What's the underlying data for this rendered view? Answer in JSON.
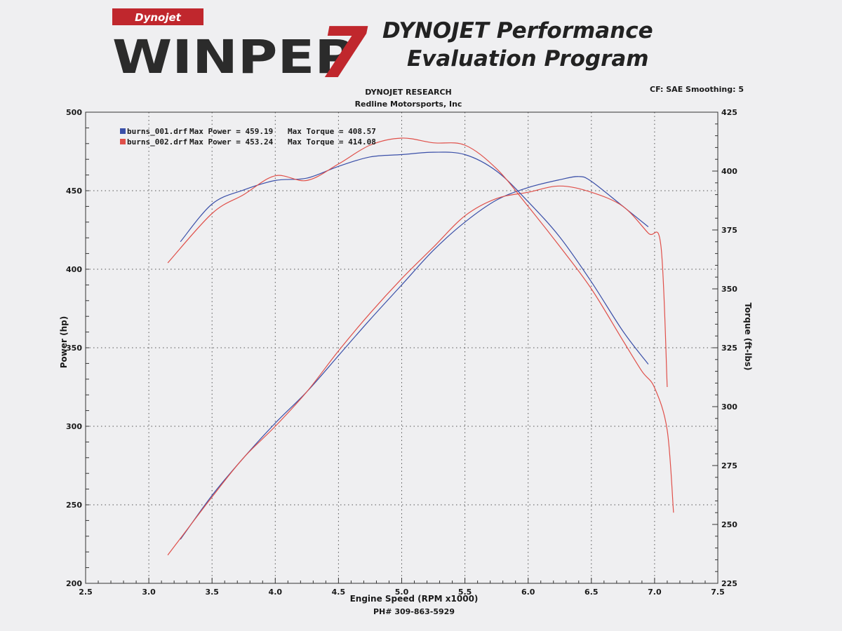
{
  "header": {
    "logo_brand": "Dynojet",
    "logo_main": "WINPEP",
    "logo_version": "7",
    "program_title_line1": "DYNOJET Performance",
    "program_title_line2": "Evaluation Program",
    "company": "DYNOJET RESEARCH",
    "shop": "Redline Motorsports, Inc",
    "settings": "CF: SAE  Smoothing: 5"
  },
  "footer": {
    "phone": "PH# 309-863-5929"
  },
  "legend": [
    {
      "file": "burns_001.drf",
      "power_label": "Max Power = 459.19",
      "torque_label": "Max Torque = 408.57",
      "color": "#3a4fa8"
    },
    {
      "file": "burns_002.drf",
      "power_label": "Max Power = 453.24",
      "torque_label": "Max Torque = 414.08",
      "color": "#e0504a"
    }
  ],
  "chart_data": {
    "type": "line",
    "xlabel": "Engine Speed (RPM x1000)",
    "ylabel": "Power (hp)",
    "y2label": "Torque (ft-lbs)",
    "xlim": [
      2.5,
      7.5
    ],
    "ylim": [
      200,
      500
    ],
    "y2lim": [
      225,
      425
    ],
    "x_ticks": [
      "2.5",
      "3.0",
      "3.5",
      "4.0",
      "4.5",
      "5.0",
      "5.5",
      "6.0",
      "6.5",
      "7.0",
      "7.5"
    ],
    "y_ticks": [
      "200",
      "250",
      "300",
      "350",
      "400",
      "450",
      "500"
    ],
    "y2_ticks": [
      "225",
      "250",
      "275",
      "300",
      "325",
      "350",
      "375",
      "400",
      "425"
    ],
    "grid": true,
    "legend_position": "top-left",
    "series": [
      {
        "name": "burns_001.drf",
        "quantity": "power",
        "axis": "left",
        "color": "#3a4fa8",
        "x": [
          3.25,
          3.5,
          3.75,
          4.0,
          4.25,
          4.5,
          4.75,
          5.0,
          5.25,
          5.5,
          5.75,
          6.0,
          6.25,
          6.4,
          6.5,
          6.75,
          6.95
        ],
        "y": [
          228,
          256,
          280,
          302,
          322,
          345,
          368,
          390,
          412,
          430,
          444,
          452,
          457,
          459,
          456,
          440,
          427
        ]
      },
      {
        "name": "burns_002.drf",
        "quantity": "power",
        "axis": "left",
        "color": "#e0504a",
        "x": [
          3.15,
          3.5,
          3.75,
          4.0,
          4.25,
          4.5,
          4.75,
          5.0,
          5.25,
          5.5,
          5.75,
          6.0,
          6.25,
          6.5,
          6.75,
          6.95,
          7.05,
          7.1
        ],
        "y": [
          218,
          255,
          280,
          300,
          322,
          348,
          372,
          394,
          414,
          434,
          445,
          449,
          453,
          449,
          440,
          423,
          415,
          325
        ]
      },
      {
        "name": "burns_001.drf",
        "quantity": "torque",
        "axis": "right",
        "color": "#3a4fa8",
        "x": [
          3.25,
          3.5,
          3.75,
          4.0,
          4.25,
          4.5,
          4.75,
          5.0,
          5.25,
          5.5,
          5.75,
          6.0,
          6.25,
          6.5,
          6.75,
          6.95
        ],
        "y": [
          370,
          386,
          392,
          396,
          397,
          402,
          406,
          407,
          408,
          407,
          400,
          387,
          372,
          353,
          332,
          318
        ]
      },
      {
        "name": "burns_002.drf",
        "quantity": "torque",
        "axis": "right",
        "color": "#e0504a",
        "x": [
          3.15,
          3.5,
          3.75,
          4.0,
          4.25,
          4.5,
          4.75,
          5.0,
          5.25,
          5.5,
          5.75,
          6.0,
          6.25,
          6.5,
          6.75,
          6.9,
          7.0,
          7.1,
          7.15
        ],
        "y": [
          361,
          382,
          390,
          398,
          396,
          403,
          411,
          414,
          412,
          411,
          401,
          385,
          368,
          350,
          328,
          315,
          308,
          290,
          255
        ]
      }
    ]
  }
}
